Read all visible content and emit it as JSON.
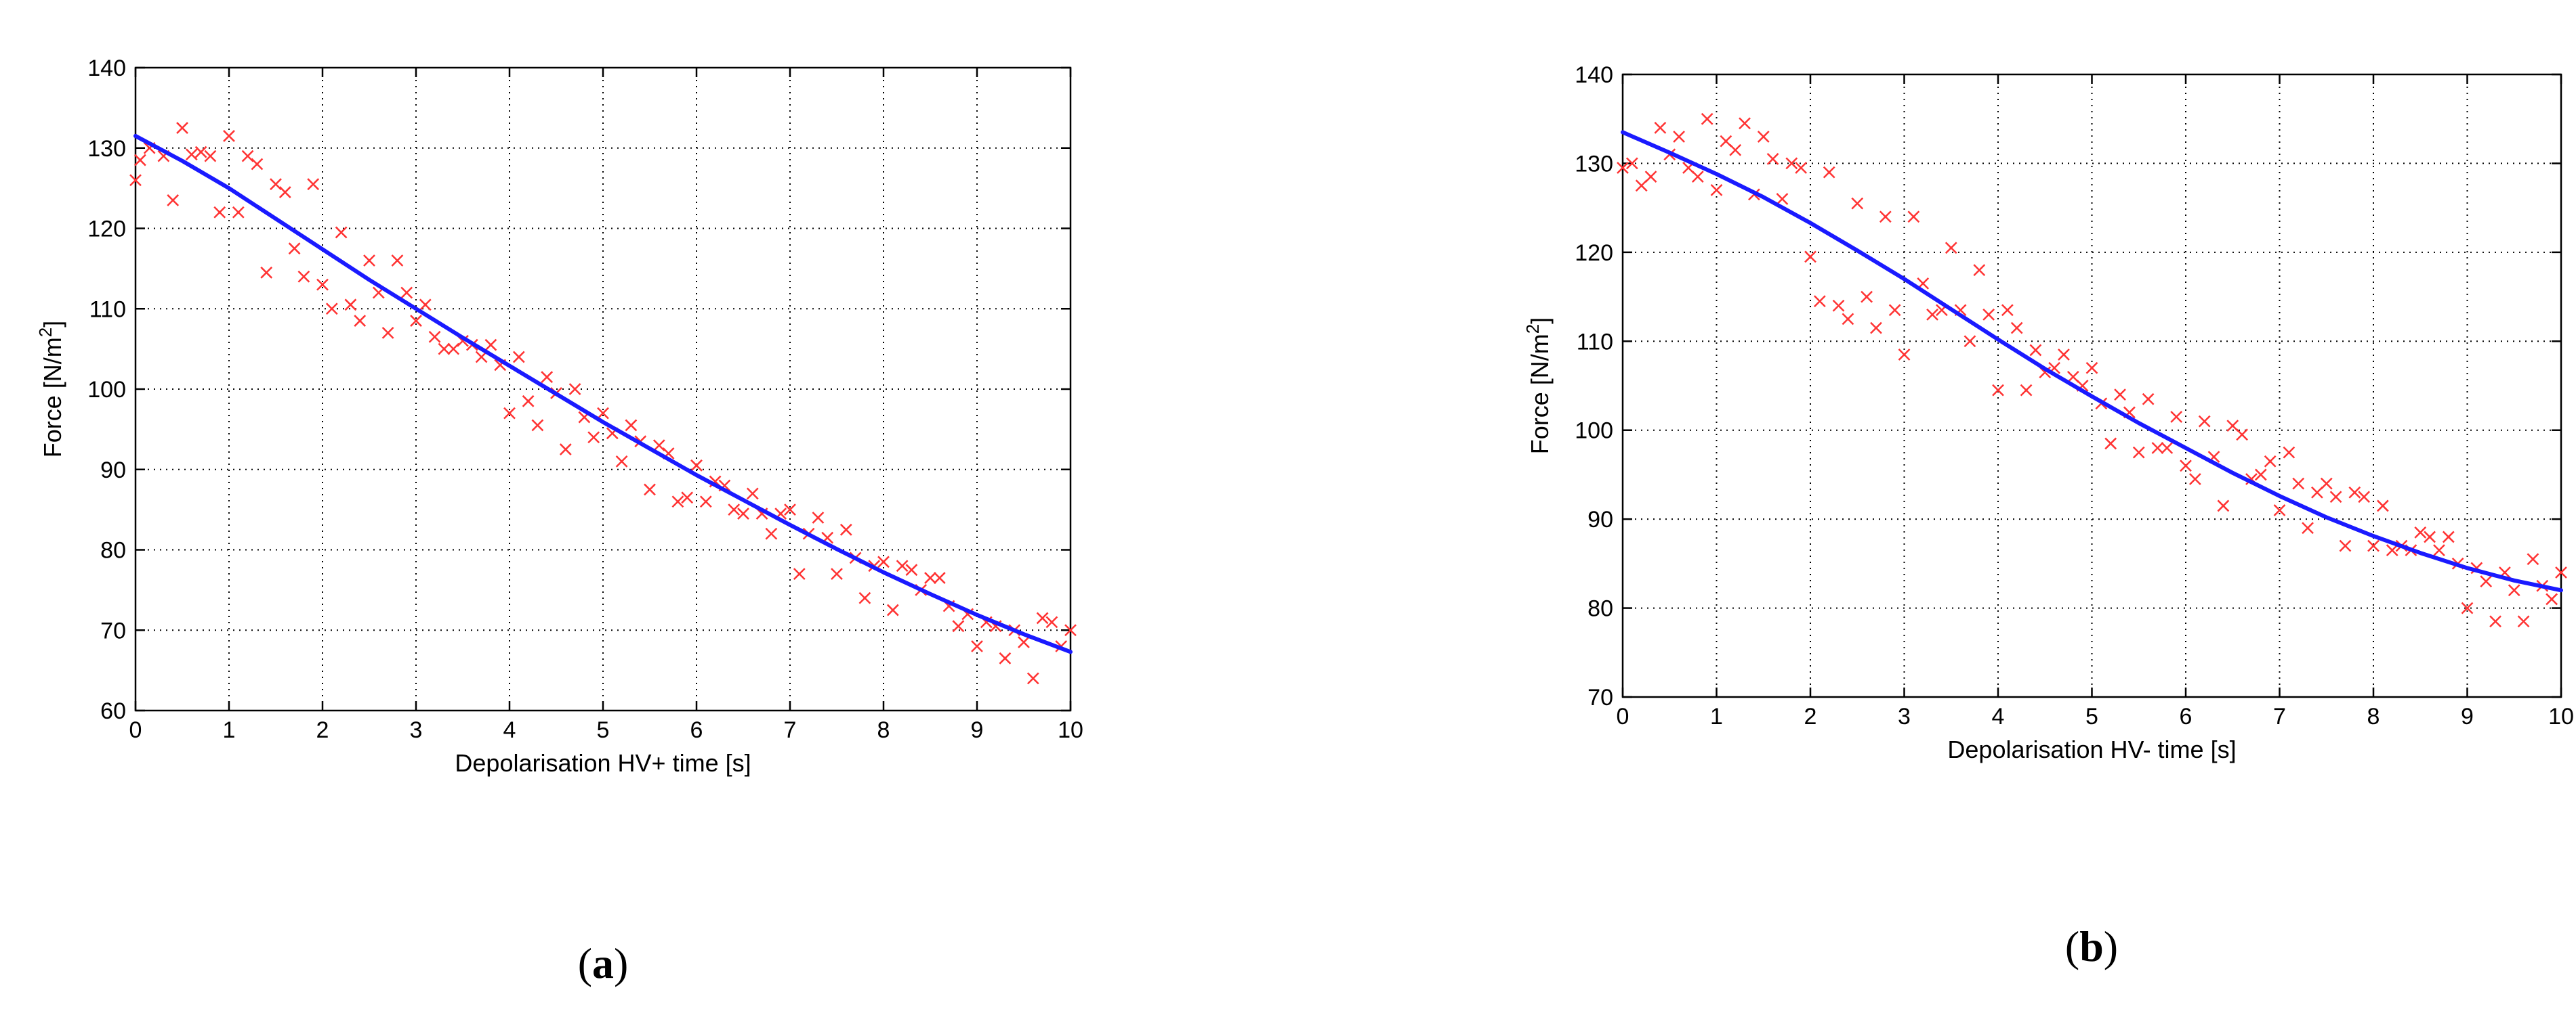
{
  "chart_data": [
    {
      "type": "scatter",
      "panel_label": "a",
      "xlabel": "Depolarisation HV+ time [s]",
      "ylabel_main": "Force [N/m",
      "ylabel_sup": "2",
      "ylabel_end": "]",
      "xlim": [
        0,
        10
      ],
      "ylim": [
        60,
        140
      ],
      "xticks": [
        0,
        1,
        2,
        3,
        4,
        5,
        6,
        7,
        8,
        9,
        10
      ],
      "yticks": [
        60,
        70,
        80,
        90,
        100,
        110,
        120,
        130,
        140
      ],
      "grid": true,
      "scatter_color": "#ff3333",
      "fit_color": "#1a1aff",
      "points": {
        "x": [
          0.0,
          0.05,
          0.15,
          0.3,
          0.4,
          0.5,
          0.6,
          0.7,
          0.8,
          0.9,
          1.0,
          1.1,
          1.2,
          1.3,
          1.4,
          1.5,
          1.6,
          1.7,
          1.8,
          1.9,
          2.0,
          2.1,
          2.2,
          2.3,
          2.4,
          2.5,
          2.6,
          2.7,
          2.8,
          2.9,
          3.0,
          3.1,
          3.2,
          3.3,
          3.4,
          3.5,
          3.6,
          3.7,
          3.8,
          3.9,
          4.0,
          4.1,
          4.2,
          4.3,
          4.4,
          4.5,
          4.6,
          4.7,
          4.8,
          4.9,
          5.0,
          5.1,
          5.2,
          5.3,
          5.4,
          5.5,
          5.6,
          5.7,
          5.8,
          5.9,
          6.0,
          6.1,
          6.2,
          6.3,
          6.4,
          6.5,
          6.6,
          6.7,
          6.8,
          6.9,
          7.0,
          7.1,
          7.2,
          7.3,
          7.4,
          7.5,
          7.6,
          7.7,
          7.8,
          7.9,
          8.0,
          8.1,
          8.2,
          8.3,
          8.4,
          8.5,
          8.6,
          8.7,
          8.8,
          8.9,
          9.0,
          9.1,
          9.2,
          9.3,
          9.4,
          9.5,
          9.6,
          9.7,
          9.8,
          9.9,
          10.0
        ],
        "y": [
          126,
          128.5,
          130,
          129,
          123.5,
          132.5,
          129.2,
          129.5,
          129,
          122,
          131.5,
          122,
          129,
          128,
          114.5,
          125.5,
          124.5,
          117.5,
          114,
          125.5,
          113,
          110,
          119.5,
          110.5,
          108.5,
          116,
          112,
          107,
          116,
          112,
          108.5,
          110.5,
          106.5,
          105,
          105,
          106,
          105.5,
          104,
          105.5,
          103,
          97,
          104,
          98.5,
          95.5,
          101.5,
          99.5,
          92.5,
          100,
          96.5,
          94,
          97,
          94.5,
          91,
          95.5,
          93.5,
          87.5,
          93,
          92,
          86,
          86.5,
          90.5,
          86,
          88.5,
          88,
          85,
          84.5,
          87,
          84.5,
          82,
          84.5,
          85,
          77,
          82,
          84,
          81.5,
          77,
          82.5,
          79,
          74,
          78,
          78.5,
          72.5,
          78,
          77.5,
          75,
          76.5,
          76.5,
          73,
          70.5,
          72,
          68,
          71,
          70.5,
          66.5,
          70,
          68.5,
          64,
          71.5,
          71,
          68,
          70
        ]
      },
      "fit": {
        "x": [
          0,
          0.5,
          1,
          1.5,
          2,
          2.5,
          3,
          3.5,
          4,
          4.5,
          5,
          5.5,
          6,
          6.5,
          7,
          7.5,
          8,
          8.5,
          9,
          9.5,
          10
        ],
        "y": [
          131.5,
          128.4,
          125,
          121.2,
          117.4,
          113.6,
          110,
          106.4,
          102.9,
          99.4,
          95.9,
          92.6,
          89.3,
          86.2,
          83.1,
          80.1,
          77.2,
          74.5,
          71.9,
          69.5,
          67.3
        ]
      }
    },
    {
      "type": "scatter",
      "panel_label": "b",
      "xlabel": "Depolarisation HV- time [s]",
      "ylabel_main": "Force [N/m",
      "ylabel_sup": "2",
      "ylabel_end": "]",
      "xlim": [
        0,
        10
      ],
      "ylim": [
        70,
        140
      ],
      "xticks": [
        0,
        1,
        2,
        3,
        4,
        5,
        6,
        7,
        8,
        9,
        10
      ],
      "yticks": [
        70,
        80,
        90,
        100,
        110,
        120,
        130,
        140
      ],
      "grid": true,
      "scatter_color": "#ff3333",
      "fit_color": "#1a1aff",
      "points": {
        "x": [
          0.0,
          0.1,
          0.2,
          0.3,
          0.4,
          0.5,
          0.6,
          0.7,
          0.8,
          0.9,
          1.0,
          1.1,
          1.2,
          1.3,
          1.4,
          1.5,
          1.6,
          1.7,
          1.8,
          1.9,
          2.0,
          2.1,
          2.2,
          2.3,
          2.4,
          2.5,
          2.6,
          2.7,
          2.8,
          2.9,
          3.0,
          3.1,
          3.2,
          3.3,
          3.4,
          3.5,
          3.6,
          3.7,
          3.8,
          3.9,
          4.0,
          4.1,
          4.2,
          4.3,
          4.4,
          4.5,
          4.6,
          4.7,
          4.8,
          4.9,
          5.0,
          5.1,
          5.2,
          5.3,
          5.4,
          5.5,
          5.6,
          5.7,
          5.8,
          5.9,
          6.0,
          6.1,
          6.2,
          6.3,
          6.4,
          6.5,
          6.6,
          6.7,
          6.8,
          6.9,
          7.0,
          7.1,
          7.2,
          7.3,
          7.4,
          7.5,
          7.6,
          7.7,
          7.8,
          7.9,
          8.0,
          8.1,
          8.2,
          8.3,
          8.4,
          8.5,
          8.6,
          8.7,
          8.8,
          8.9,
          9.0,
          9.1,
          9.2,
          9.3,
          9.4,
          9.5,
          9.6,
          9.7,
          9.8,
          9.9,
          10.0
        ],
        "y": [
          129.5,
          130,
          127.5,
          128.5,
          134,
          131,
          133,
          129.5,
          128.5,
          135,
          127,
          132.5,
          131.5,
          134.5,
          126.5,
          133,
          130.5,
          126,
          130,
          129.5,
          119.5,
          114.5,
          129,
          114,
          112.5,
          125.5,
          115,
          111.5,
          124,
          113.5,
          108.5,
          124,
          116.5,
          113,
          113.5,
          120.5,
          113.5,
          110,
          118,
          113,
          104.5,
          113.5,
          111.5,
          104.5,
          109,
          106.5,
          107,
          108.5,
          106,
          105,
          107,
          103,
          98.5,
          104,
          102,
          97.5,
          103.5,
          98,
          98,
          101.5,
          96,
          94.5,
          101,
          97,
          91.5,
          100.5,
          99.5,
          94.5,
          95,
          96.5,
          91,
          97.5,
          94,
          89,
          93,
          94,
          92.5,
          87,
          93,
          92.5,
          87,
          91.5,
          86.5,
          87,
          86.5,
          88.5,
          88,
          86.5,
          88,
          85,
          80,
          84.5,
          83,
          78.5,
          84,
          82,
          78.5,
          85.5,
          82.5,
          81,
          84
        ]
      },
      "fit": {
        "x": [
          0,
          0.5,
          1,
          1.5,
          2,
          2.5,
          3,
          3.5,
          4,
          4.5,
          5,
          5.5,
          6,
          6.5,
          7,
          7.5,
          8,
          8.5,
          9,
          9.5,
          10
        ],
        "y": [
          133.5,
          131.2,
          128.8,
          126.2,
          123.3,
          120.2,
          117,
          113.6,
          110.2,
          106.9,
          103.8,
          100.8,
          98,
          95.2,
          92.6,
          90.2,
          88.1,
          86.2,
          84.5,
          83.1,
          82
        ]
      }
    }
  ]
}
